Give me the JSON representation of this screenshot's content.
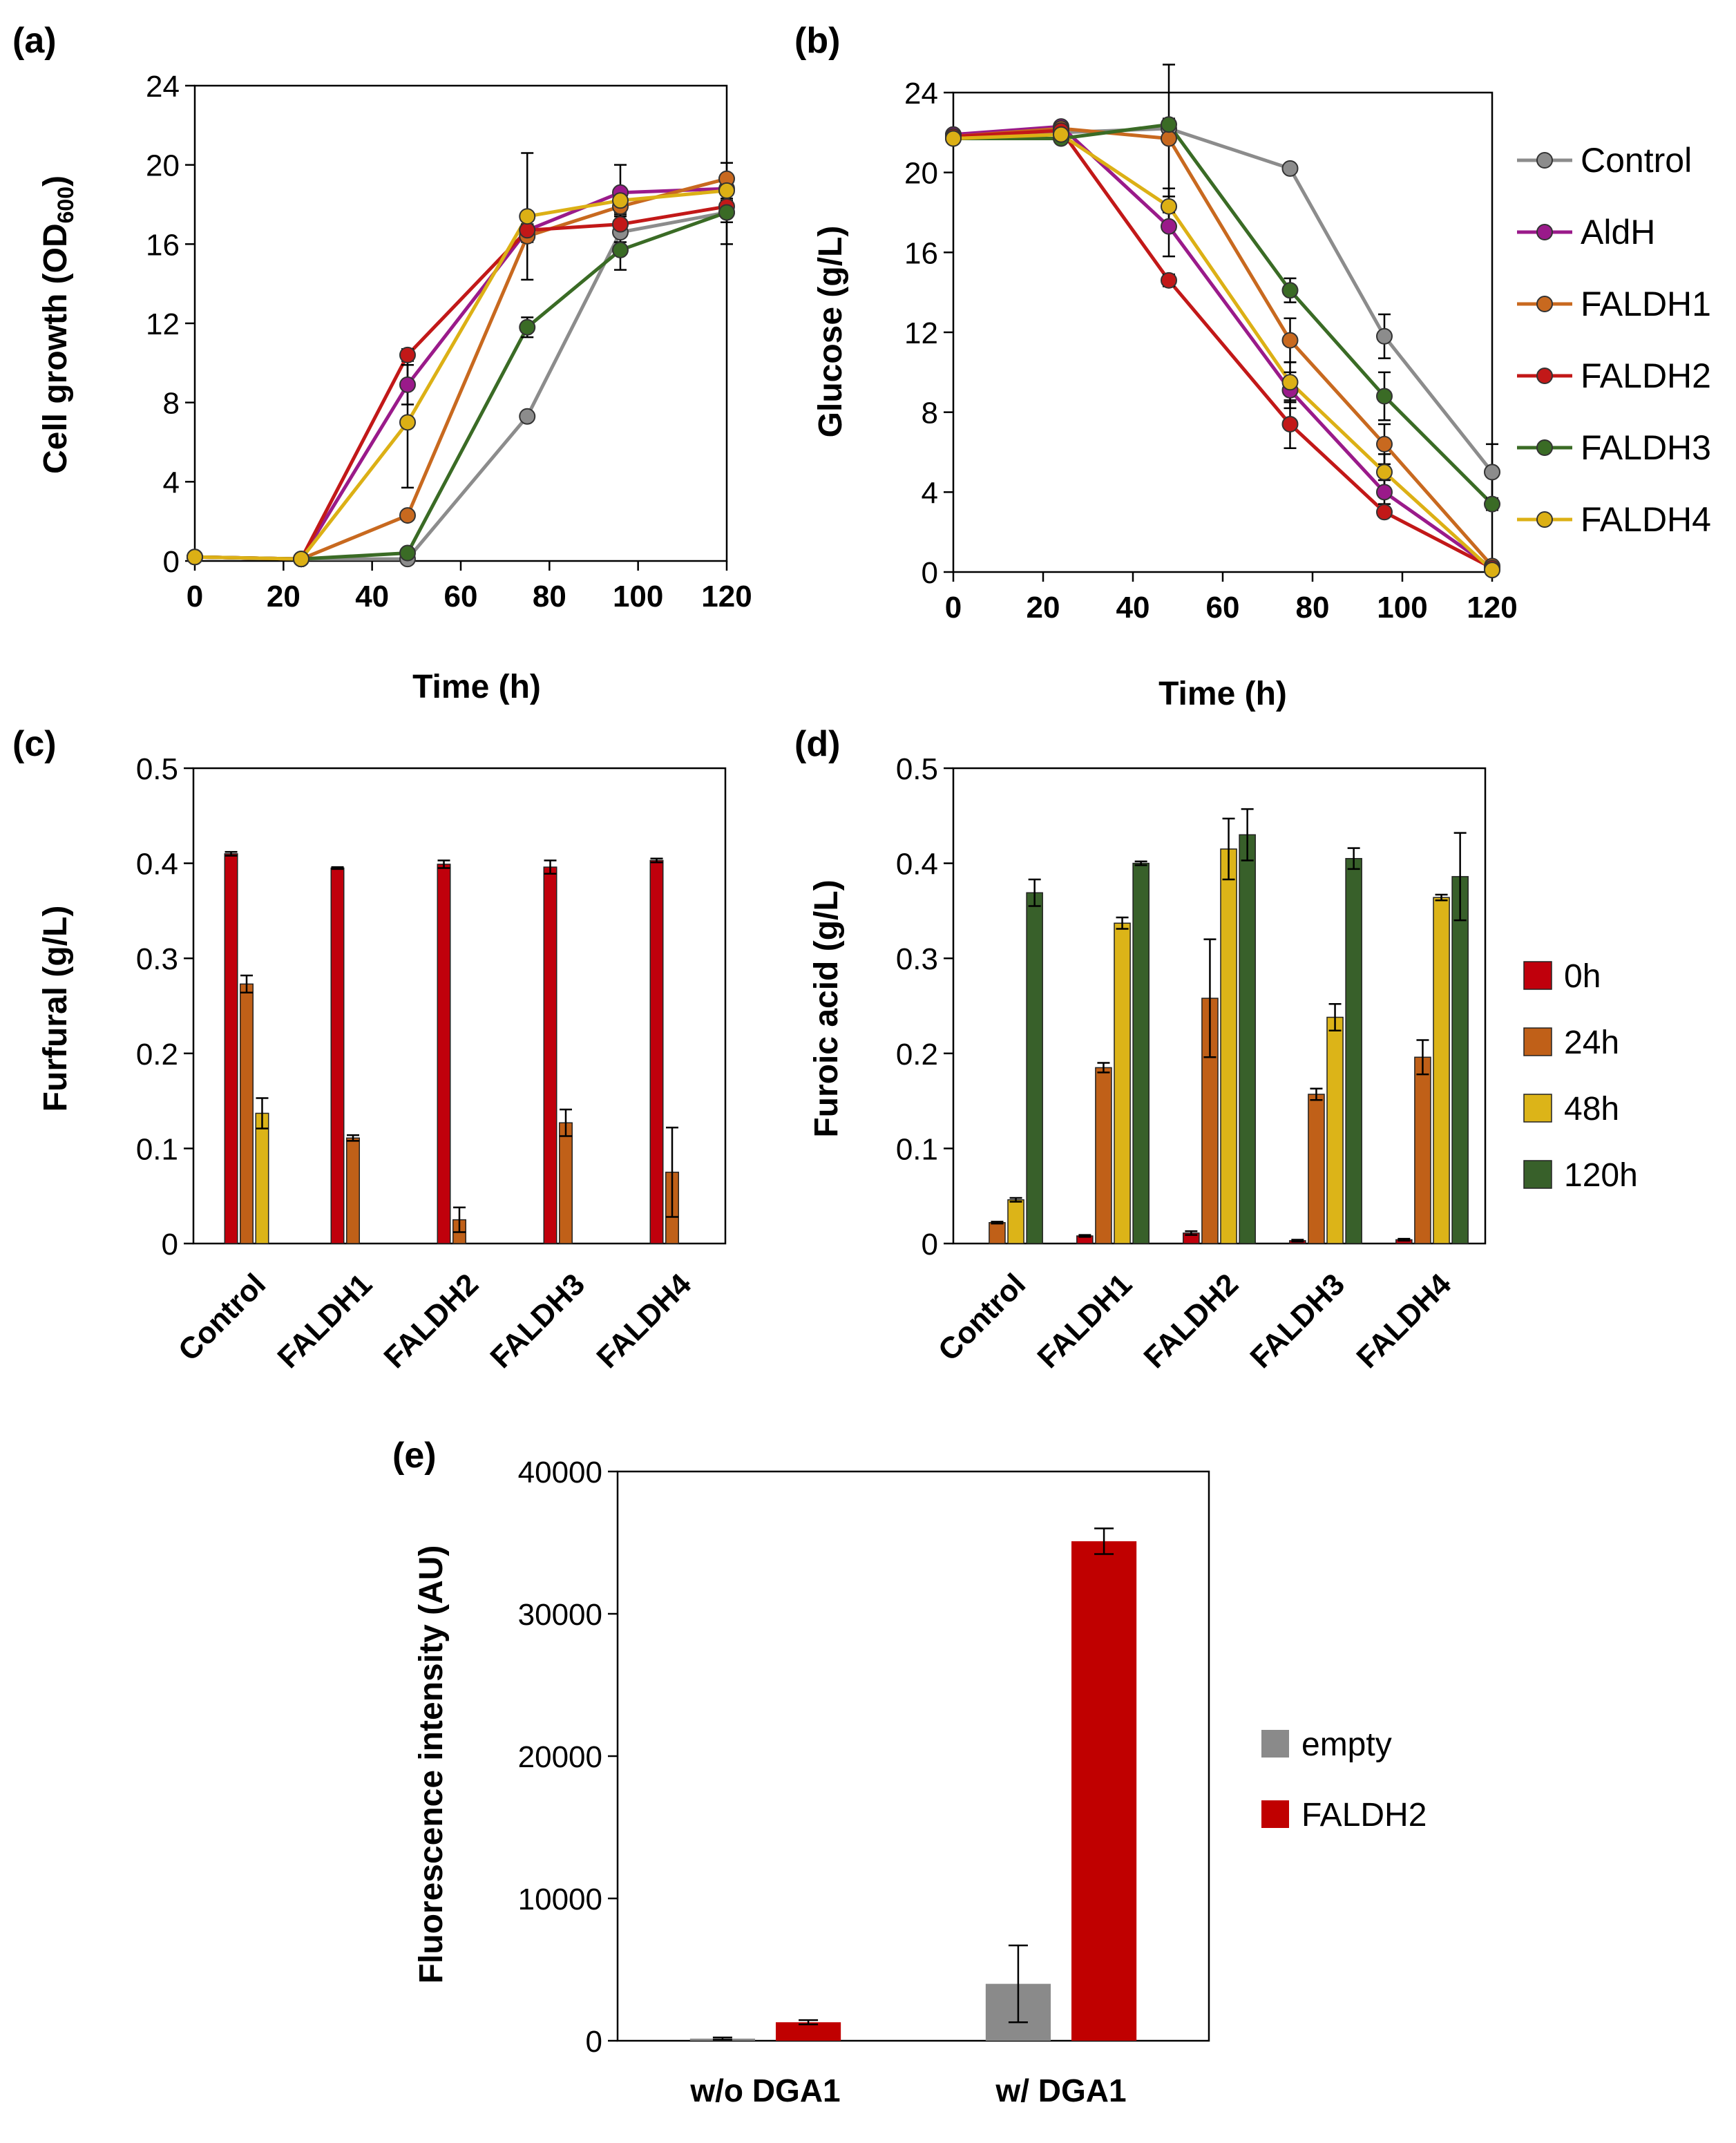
{
  "panels": {
    "a": {
      "label": "(a)"
    },
    "b": {
      "label": "(b)"
    },
    "c": {
      "label": "(c)"
    },
    "d": {
      "label": "(d)"
    },
    "e": {
      "label": "(e)"
    }
  },
  "colors": {
    "control": "#8c8c8c",
    "aldh": "#9a1a8a",
    "faldh1": "#c8691f",
    "faldh2": "#c21818",
    "faldh3": "#3a6b25",
    "faldh4": "#dcb015",
    "h0": "#c0000c",
    "h24": "#c06018",
    "h48": "#dcb418",
    "h120": "#38602a",
    "empty": "#8a8a8a",
    "faldh2_e": "#c00000"
  },
  "chart_data": [
    {
      "panel": "a",
      "type": "line",
      "title": "",
      "xlabel": "Time (h)",
      "ylabel": "Cell growth (OD",
      "ylabel_sub": "600",
      "ylabel_close": ")",
      "xlim": [
        0,
        120
      ],
      "ylim": [
        0,
        24
      ],
      "xticks": [
        0,
        20,
        40,
        60,
        80,
        100,
        120
      ],
      "yticks": [
        0,
        4,
        8,
        12,
        16,
        20,
        24
      ],
      "x": [
        0,
        24,
        48,
        75,
        96,
        120
      ],
      "series": [
        {
          "name": "Control",
          "color_key": "control",
          "values": [
            0.2,
            0.1,
            0.1,
            7.3,
            16.6,
            17.6
          ],
          "errors": [
            0,
            0,
            0,
            0,
            0.5,
            0.5
          ]
        },
        {
          "name": "AldH",
          "color_key": "aldh",
          "values": [
            0.2,
            0.1,
            8.9,
            16.7,
            18.6,
            18.8
          ],
          "errors": [
            0,
            0,
            1.0,
            0.3,
            1.4,
            0.6
          ]
        },
        {
          "name": "FALDH1",
          "color_key": "faldh1",
          "values": [
            0.2,
            0.1,
            2.3,
            16.4,
            17.9,
            19.3
          ],
          "errors": [
            0,
            0,
            0.2,
            0.3,
            0.5,
            0.8
          ]
        },
        {
          "name": "FALDH2",
          "color_key": "faldh2",
          "values": [
            0.2,
            0.1,
            10.4,
            16.7,
            17.0,
            17.9
          ],
          "errors": [
            0,
            0,
            0.3,
            0.3,
            0.5,
            0.4
          ]
        },
        {
          "name": "FALDH3",
          "color_key": "faldh3",
          "values": [
            0.2,
            0.1,
            0.4,
            11.8,
            15.7,
            17.6
          ],
          "errors": [
            0,
            0,
            0.2,
            0.5,
            1.0,
            1.6
          ]
        },
        {
          "name": "FALDH4",
          "color_key": "faldh4",
          "values": [
            0.2,
            0.1,
            7.0,
            17.4,
            18.2,
            18.7
          ],
          "errors": [
            0,
            0,
            3.3,
            3.2,
            0.6,
            0.5
          ]
        }
      ]
    },
    {
      "panel": "b",
      "type": "line",
      "title": "",
      "xlabel": "Time (h)",
      "ylabel": "Glucose (g/L)",
      "xlim": [
        0,
        120
      ],
      "ylim": [
        0,
        24
      ],
      "xticks": [
        0,
        20,
        40,
        60,
        80,
        100,
        120
      ],
      "yticks": [
        0,
        4,
        8,
        12,
        16,
        20,
        24
      ],
      "x": [
        0,
        24,
        48,
        75,
        96,
        120
      ],
      "legend_position": "right",
      "series": [
        {
          "name": "Control",
          "color_key": "control",
          "values": [
            21.9,
            22.0,
            22.2,
            20.2,
            11.8,
            5.0
          ],
          "errors": [
            0,
            0,
            0,
            0,
            1.1,
            1.4
          ]
        },
        {
          "name": "AldH",
          "color_key": "aldh",
          "values": [
            21.9,
            22.3,
            17.3,
            9.1,
            4.0,
            0.2
          ],
          "errors": [
            0,
            0,
            1.5,
            0.9,
            0.6,
            0
          ]
        },
        {
          "name": "FALDH1",
          "color_key": "faldh1",
          "values": [
            21.8,
            22.2,
            21.7,
            11.6,
            6.4,
            0.3
          ],
          "errors": [
            0,
            0,
            3.7,
            1.1,
            1.0,
            0
          ]
        },
        {
          "name": "FALDH2",
          "color_key": "faldh2",
          "values": [
            21.8,
            22.1,
            14.6,
            7.4,
            3.0,
            0.2
          ],
          "errors": [
            0,
            0,
            0.3,
            1.2,
            0.2,
            0
          ]
        },
        {
          "name": "FALDH3",
          "color_key": "faldh3",
          "values": [
            21.7,
            21.7,
            22.4,
            14.1,
            8.8,
            3.4
          ],
          "errors": [
            0,
            0,
            0.3,
            0.6,
            1.2,
            0.3
          ]
        },
        {
          "name": "FALDH4",
          "color_key": "faldh4",
          "values": [
            21.7,
            21.9,
            18.3,
            9.5,
            5.0,
            0.1
          ],
          "errors": [
            0,
            0,
            0.9,
            1.0,
            0.9,
            0
          ]
        }
      ]
    },
    {
      "panel": "c",
      "type": "bar",
      "title": "",
      "xlabel": "",
      "ylabel": "Furfural (g/L)",
      "ylim": [
        0,
        0.5
      ],
      "yticks": [
        "0",
        "0.1",
        "0.2",
        "0.3",
        "0.4",
        "0.5"
      ],
      "categories": [
        "Control",
        "FALDH1",
        "FALDH2",
        "FALDH3",
        "FALDH4"
      ],
      "series": [
        {
          "name": "0h",
          "color_key": "h0",
          "values": [
            0.41,
            0.395,
            0.399,
            0.396,
            0.403
          ],
          "errors": [
            0.002,
            0.001,
            0.004,
            0.007,
            0.002
          ]
        },
        {
          "name": "24h",
          "color_key": "h24",
          "values": [
            0.273,
            0.111,
            0.025,
            0.127,
            0.075
          ],
          "errors": [
            0.009,
            0.003,
            0.013,
            0.014,
            0.047
          ]
        },
        {
          "name": "48h",
          "color_key": "h48",
          "values": [
            0.137,
            0,
            0,
            0,
            0
          ],
          "errors": [
            0.016,
            0,
            0,
            0,
            0
          ]
        }
      ]
    },
    {
      "panel": "d",
      "type": "bar",
      "title": "",
      "xlabel": "",
      "ylabel": "Furoic acid (g/L)",
      "ylim": [
        0,
        0.5
      ],
      "yticks": [
        "0",
        "0.1",
        "0.2",
        "0.3",
        "0.4",
        "0.5"
      ],
      "categories": [
        "Control",
        "FALDH1",
        "FALDH2",
        "FALDH3",
        "FALDH4"
      ],
      "legend_position": "right",
      "series": [
        {
          "name": "0h",
          "color_key": "h0",
          "values": [
            0,
            0.008,
            0.011,
            0.003,
            0.004
          ],
          "errors": [
            0,
            0.001,
            0.002,
            0.001,
            0.001
          ]
        },
        {
          "name": "24h",
          "color_key": "h24",
          "values": [
            0.022,
            0.185,
            0.258,
            0.157,
            0.196
          ],
          "errors": [
            0.001,
            0.005,
            0.062,
            0.006,
            0.018
          ]
        },
        {
          "name": "48h",
          "color_key": "h48",
          "values": [
            0.046,
            0.337,
            0.415,
            0.238,
            0.364
          ],
          "errors": [
            0.002,
            0.006,
            0.032,
            0.014,
            0.003
          ]
        },
        {
          "name": "120h",
          "color_key": "h120",
          "values": [
            0.369,
            0.4,
            0.43,
            0.405,
            0.386
          ],
          "errors": [
            0.014,
            0.002,
            0.027,
            0.011,
            0.046
          ]
        }
      ]
    },
    {
      "panel": "e",
      "type": "bar",
      "title": "",
      "xlabel": "",
      "ylabel": "Fluorescence intensity (AU)",
      "ylim": [
        0,
        40000
      ],
      "yticks": [
        "0",
        "10000",
        "20000",
        "30000",
        "40000"
      ],
      "categories": [
        "w/o DGA1",
        "w/ DGA1"
      ],
      "legend_position": "right",
      "series": [
        {
          "name": "empty",
          "color_key": "empty",
          "values": [
            150,
            4000
          ],
          "errors": [
            80,
            2700
          ]
        },
        {
          "name": "FALDH2",
          "color_key": "faldh2_e",
          "values": [
            1300,
            35100
          ],
          "errors": [
            150,
            900
          ]
        }
      ]
    }
  ]
}
